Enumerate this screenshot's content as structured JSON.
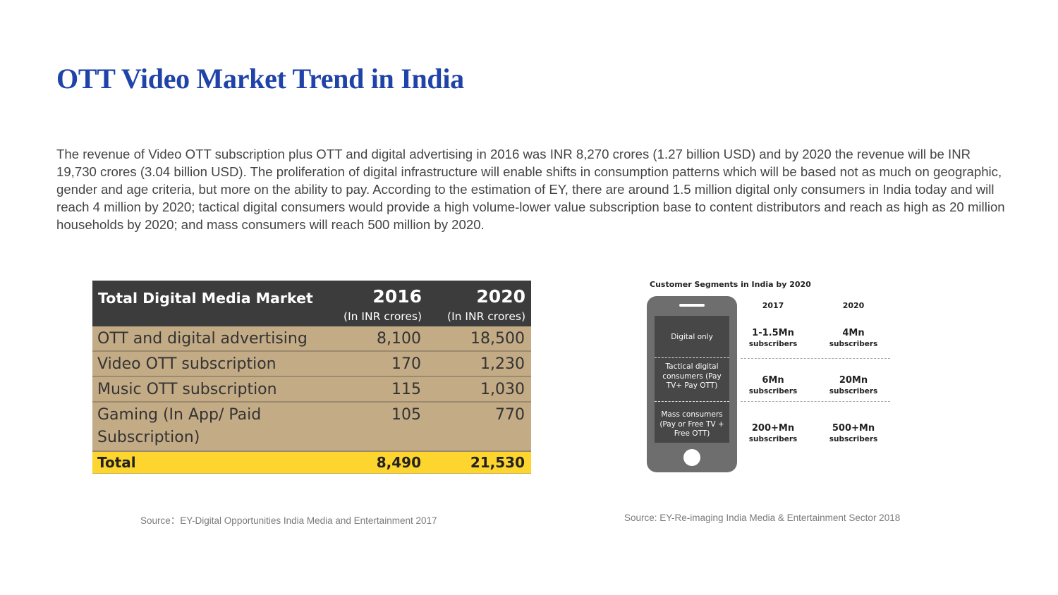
{
  "title": "OTT Video Market Trend in India",
  "paragraph": "The revenue of Video OTT subscription plus OTT and digital advertising in 2016 was INR 8,270 crores (1.27 billion USD) and by 2020 the revenue will be INR 19,730 crores (3.04 billion USD). The proliferation of digital infrastructure will enable shifts in consumption patterns which will be based not as much on geographic, gender and age criteria, but more on the ability to pay. According to the estimation of EY, there are around 1.5 million digital only consumers in India today and will reach 4 million by 2020; tactical digital consumers would provide a high volume-lower value subscription base to content distributors and reach as high as 20 million households by 2020; and mass consumers will reach 500 million by 2020.",
  "market_table": {
    "header": "Total Digital Media Market",
    "years": [
      "2016",
      "2020"
    ],
    "unit": "(In INR crores)",
    "rows": [
      {
        "label": "OTT and digital advertising",
        "v2016": "8,100",
        "v2020": "18,500"
      },
      {
        "label": "Video OTT subscription",
        "v2016": "170",
        "v2020": "1,230"
      },
      {
        "label": "Music OTT subscription",
        "v2016": "115",
        "v2020": "1,030"
      },
      {
        "label": "Gaming (In App/ Paid Subscription)",
        "v2016": "105",
        "v2020": "770"
      }
    ],
    "total": {
      "label": "Total",
      "v2016": "8,490",
      "v2020": "21,530"
    }
  },
  "segments": {
    "title": "Customer Segments in India by 2020",
    "years": [
      "2017",
      "2020"
    ],
    "unit": "subscribers",
    "rows": [
      {
        "label": "Digital only",
        "v2017": "1-1.5Mn",
        "v2020": "4Mn"
      },
      {
        "label": "Tactical digital consumers (Pay TV+ Pay OTT)",
        "v2017": "6Mn",
        "v2020": "20Mn"
      },
      {
        "label": "Mass consumers (Pay or Free TV + Free OTT)",
        "v2017": "200+Mn",
        "v2020": "500+Mn"
      }
    ]
  },
  "sources": {
    "left": "Source：EY-Digital Opportunities India Media and Entertainment 2017",
    "right": "Source: EY-Re-imaging India Media & Entertainment Sector 2018"
  }
}
